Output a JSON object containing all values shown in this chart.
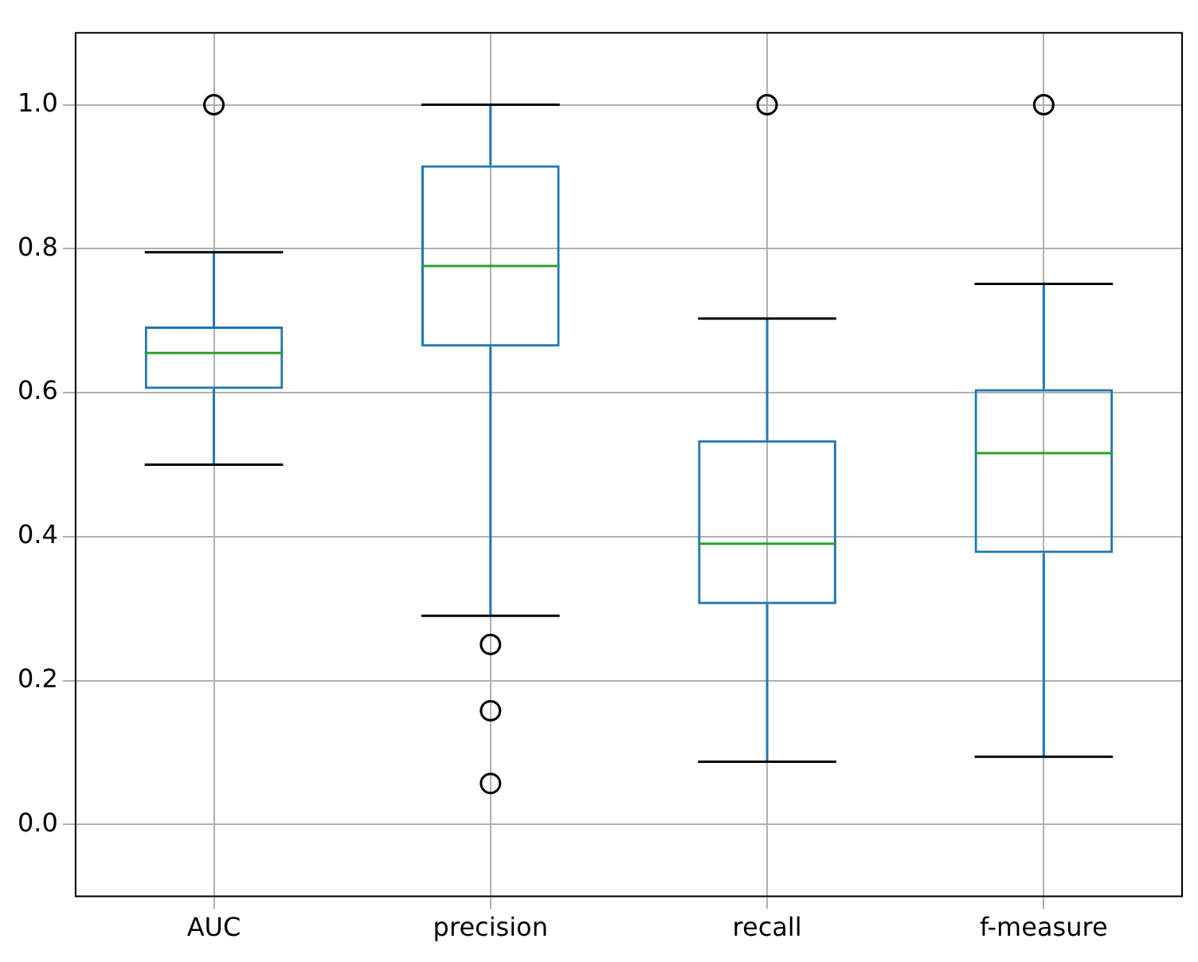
{
  "chart_data": {
    "type": "box",
    "categories": [
      "AUC",
      "precision",
      "recall",
      "f-measure"
    ],
    "series": [
      {
        "color": "#1f77b4",
        "boxes": [
          {
            "low": 0.5,
            "q1": 0.605,
            "median": 0.655,
            "q3": 0.692,
            "high": 0.795,
            "outliers": [
              1.0
            ]
          },
          {
            "low": 0.29,
            "q1": 0.664,
            "median": 0.776,
            "q3": 0.916,
            "high": 1.0,
            "outliers": [
              0.25,
              0.158,
              0.057
            ]
          },
          {
            "low": 0.087,
            "q1": 0.306,
            "median": 0.39,
            "q3": 0.534,
            "high": 0.703,
            "outliers": [
              1.0
            ]
          },
          {
            "low": 0.094,
            "q1": 0.377,
            "median": 0.516,
            "q3": 0.605,
            "high": 0.751,
            "outliers": [
              1.0
            ]
          }
        ]
      }
    ],
    "ylim": [
      -0.1,
      1.1
    ],
    "yticks": [
      {
        "value": 0,
        "label": "0.0"
      },
      {
        "value": 0.2,
        "label": "0.2"
      },
      {
        "value": 0.4,
        "label": "0.4"
      },
      {
        "value": 0.6,
        "label": "0.6"
      },
      {
        "value": 0.8,
        "label": "0.8"
      },
      {
        "value": 1,
        "label": "1.0"
      }
    ],
    "grid": true,
    "legend": false
  }
}
